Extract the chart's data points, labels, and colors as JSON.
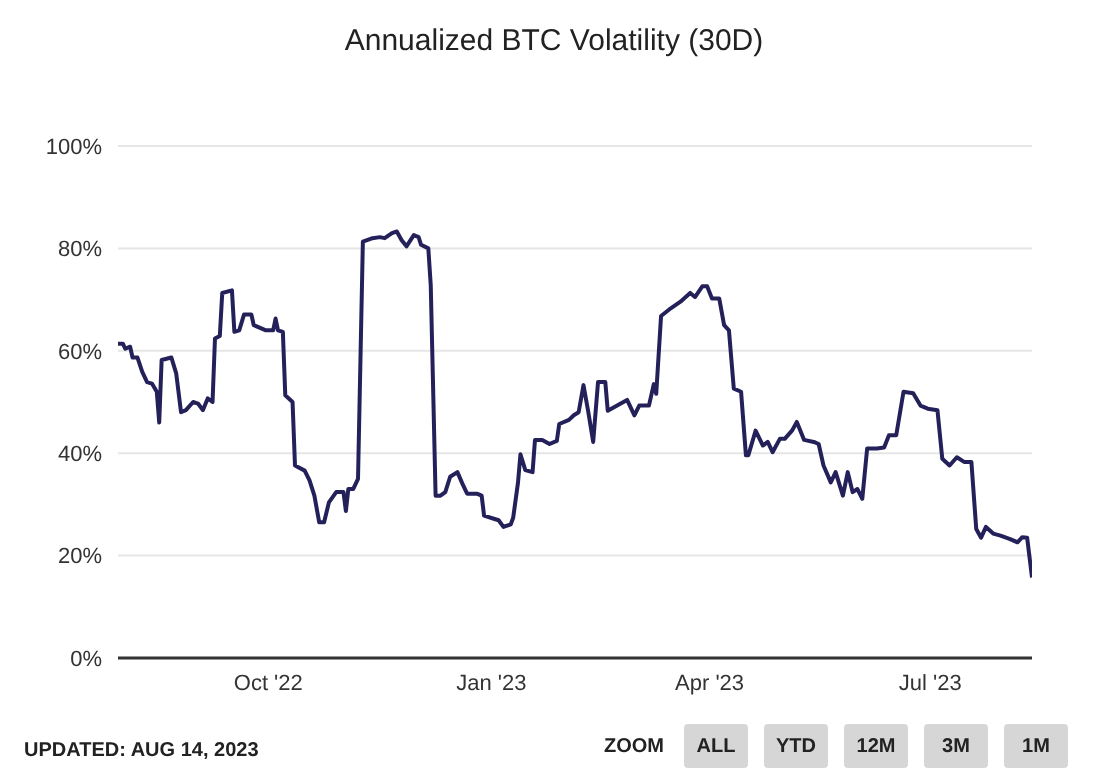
{
  "chart_data": {
    "type": "line",
    "title": "Annualized BTC Volatility (30D)",
    "x": [
      "2022-07-31",
      "2022-08-02",
      "2022-08-03",
      "2022-08-05",
      "2022-08-06",
      "2022-08-08",
      "2022-08-10",
      "2022-08-12",
      "2022-08-14",
      "2022-08-16",
      "2022-08-17",
      "2022-08-18",
      "2022-08-22",
      "2022-08-24",
      "2022-08-26",
      "2022-08-28",
      "2022-08-31",
      "2022-09-02",
      "2022-09-04",
      "2022-09-06",
      "2022-09-08",
      "2022-09-09",
      "2022-09-11",
      "2022-09-12",
      "2022-09-16",
      "2022-09-17",
      "2022-09-19",
      "2022-09-21",
      "2022-09-24",
      "2022-09-25",
      "2022-09-30",
      "2022-10-03",
      "2022-10-04",
      "2022-10-05",
      "2022-10-07",
      "2022-10-08",
      "2022-10-11",
      "2022-10-12",
      "2022-10-16",
      "2022-10-18",
      "2022-10-20",
      "2022-10-22",
      "2022-10-24",
      "2022-10-26",
      "2022-10-29",
      "2022-11-01",
      "2022-11-02",
      "2022-11-03",
      "2022-11-05",
      "2022-11-07",
      "2022-11-09",
      "2022-11-13",
      "2022-11-16",
      "2022-11-18",
      "2022-11-21",
      "2022-11-23",
      "2022-11-25",
      "2022-11-27",
      "2022-11-30",
      "2022-12-02",
      "2022-12-03",
      "2022-12-06",
      "2022-12-07",
      "2022-12-09",
      "2022-12-11",
      "2022-12-13",
      "2022-12-15",
      "2022-12-18",
      "2022-12-20",
      "2022-12-22",
      "2022-12-26",
      "2022-12-28",
      "2022-12-29",
      "2023-01-02",
      "2023-01-04",
      "2023-01-06",
      "2023-01-09",
      "2023-01-10",
      "2023-01-12",
      "2023-01-13",
      "2023-01-15",
      "2023-01-18",
      "2023-01-19",
      "2023-01-22",
      "2023-01-25",
      "2023-01-28",
      "2023-01-29",
      "2023-02-02",
      "2023-02-04",
      "2023-02-06",
      "2023-02-08",
      "2023-02-10",
      "2023-02-12",
      "2023-02-14",
      "2023-02-17",
      "2023-02-18",
      "2023-02-23",
      "2023-02-26",
      "2023-03-01",
      "2023-03-03",
      "2023-03-07",
      "2023-03-09",
      "2023-03-10",
      "2023-03-12",
      "2023-03-16",
      "2023-03-20",
      "2023-03-24",
      "2023-03-26",
      "2023-03-29",
      "2023-03-31",
      "2023-04-02",
      "2023-04-05",
      "2023-04-07",
      "2023-04-09",
      "2023-04-11",
      "2023-04-14",
      "2023-04-16",
      "2023-04-17",
      "2023-04-20",
      "2023-04-23",
      "2023-04-25",
      "2023-04-27",
      "2023-04-30",
      "2023-05-02",
      "2023-05-05",
      "2023-05-07",
      "2023-05-10",
      "2023-05-14",
      "2023-05-16",
      "2023-05-18",
      "2023-05-21",
      "2023-05-23",
      "2023-05-26",
      "2023-05-28",
      "2023-05-30",
      "2023-06-01",
      "2023-06-03",
      "2023-06-05",
      "2023-06-09",
      "2023-06-12",
      "2023-06-14",
      "2023-06-17",
      "2023-06-20",
      "2023-06-24",
      "2023-06-27",
      "2023-06-30",
      "2023-07-04",
      "2023-07-06",
      "2023-07-09",
      "2023-07-12",
      "2023-07-15",
      "2023-07-18",
      "2023-07-20",
      "2023-07-22",
      "2023-07-24",
      "2023-07-27",
      "2023-07-30",
      "2023-08-03",
      "2023-08-06",
      "2023-08-08",
      "2023-08-10",
      "2023-08-12"
    ],
    "series": [
      {
        "color": "#24215a",
        "values": [
          61.4,
          61.4,
          60.4,
          60.8,
          58.7,
          58.7,
          55.9,
          53.9,
          53.6,
          52,
          46,
          58.2,
          58.7,
          55.6,
          48,
          48.4,
          50,
          49.7,
          48.4,
          50.7,
          50,
          62.4,
          62.9,
          71.3,
          71.8,
          63.7,
          64,
          67.1,
          67.1,
          65,
          64,
          64,
          66.3,
          64,
          63.7,
          51.3,
          50,
          37.6,
          36.6,
          34.7,
          31.7,
          26.5,
          26.5,
          30.4,
          32.4,
          32.4,
          28.7,
          33,
          33,
          35,
          81.3,
          82,
          82.2,
          82,
          83,
          83.3,
          81.6,
          80.4,
          82.6,
          82.2,
          80.7,
          80,
          72.8,
          31.7,
          31.7,
          32.4,
          35.4,
          36.3,
          34.1,
          32.1,
          32.1,
          31.7,
          27.8,
          27.2,
          26.9,
          25.6,
          26.1,
          27.4,
          34.3,
          39.8,
          36.7,
          36.3,
          42.6,
          42.6,
          41.8,
          42.4,
          45.7,
          46.5,
          47.4,
          48,
          53.3,
          48,
          42.2,
          53.9,
          53.9,
          48.3,
          49.6,
          50.4,
          47.4,
          49.3,
          49.3,
          53.5,
          51.6,
          66.8,
          68.3,
          69.6,
          71.3,
          70.5,
          72.6,
          72.6,
          70.2,
          70.2,
          65,
          64,
          52.6,
          52,
          39.6,
          39.6,
          44.4,
          41.5,
          42.2,
          40.2,
          42.8,
          42.8,
          44.4,
          46.1,
          42.6,
          42.2,
          41.8,
          37.6,
          34.3,
          36.3,
          31.7,
          36.3,
          32.4,
          33,
          31.1,
          40.9,
          40.9,
          41.1,
          43.5,
          43.5,
          52,
          51.7,
          49.3,
          48.7,
          48.4,
          38.9,
          37.6,
          39.2,
          38.3,
          38.3,
          25.2,
          23.5,
          25.6,
          24.3,
          23.9,
          23.2,
          22.6,
          23.6,
          23.5,
          15.7
        ]
      }
    ],
    "xlim": [
      "2022-07-31",
      "2023-08-12"
    ],
    "xticks": [
      {
        "value": "2022-10-01",
        "label": "Oct '22"
      },
      {
        "value": "2023-01-01",
        "label": "Jan '23"
      },
      {
        "value": "2023-04-01",
        "label": "Apr '23"
      },
      {
        "value": "2023-07-01",
        "label": "Jul '23"
      }
    ],
    "ylim": [
      0,
      100
    ],
    "yticks": [
      {
        "value": 0,
        "label": "0%"
      },
      {
        "value": 20,
        "label": "20%"
      },
      {
        "value": 40,
        "label": "40%"
      },
      {
        "value": 60,
        "label": "60%"
      },
      {
        "value": 80,
        "label": "80%"
      },
      {
        "value": 100,
        "label": "100%"
      }
    ],
    "grid": "y",
    "legend": false,
    "marker": "none",
    "line_style": "solid",
    "annotations": [
      "UPDATED: AUG 14, 2023",
      "ZOOM",
      "ALL",
      "YTD",
      "12M",
      "3M",
      "1M"
    ]
  }
}
